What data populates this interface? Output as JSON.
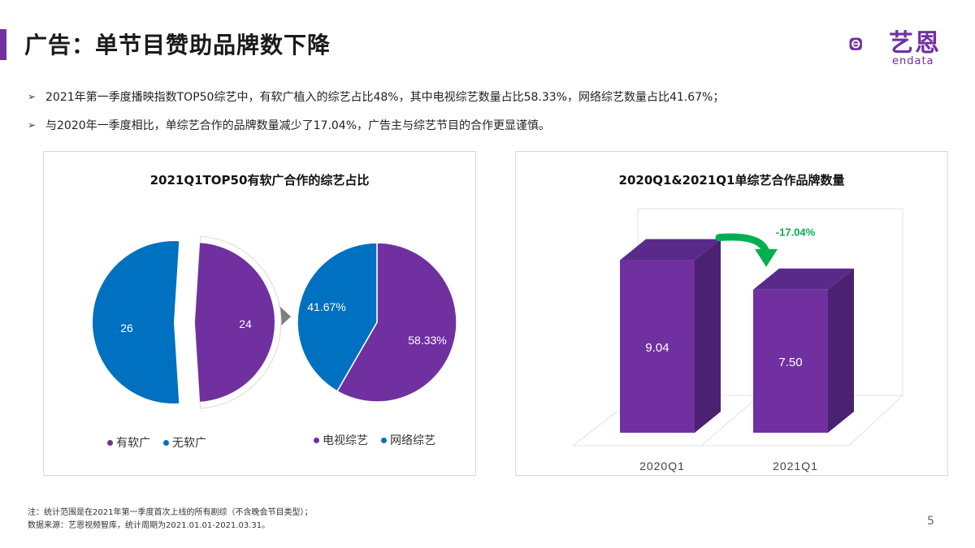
{
  "header": {
    "title": "广告：单节目赞助品牌数下降",
    "logo_name": "艺恩",
    "logo_sub": "endata"
  },
  "colors": {
    "accent": "#7030a0",
    "blue": "#0070c0",
    "green": "#00b050",
    "bar_front": "#7030a0",
    "bar_top": "#5a2a8a",
    "bar_side": "#4b2171"
  },
  "bullets": [
    "2021年第一季度播映指数TOP50综艺中，有软广植入的综艺占比48%，其中电视综艺数量占比58.33%，网络综艺数量占比41.67%；",
    "与2020年一季度相比，单综艺合作的品牌数量减少了17.04%，广告主与综艺节目的合作更显谨慎。"
  ],
  "bullet_mark": "➢",
  "chart_data": [
    {
      "type": "pie",
      "title": "2021Q1TOP50有软广合作的综艺占比",
      "labels": [
        "有软广",
        "无软广"
      ],
      "values": [
        24,
        26
      ],
      "data_labels": [
        "24",
        "26"
      ],
      "colors": [
        "#7030a0",
        "#0070c0"
      ],
      "legend_position": "bottom"
    },
    {
      "type": "pie",
      "title": "",
      "labels": [
        "电视综艺",
        "网络综艺"
      ],
      "values": [
        58.33,
        41.67
      ],
      "data_labels": [
        "58.33%",
        "41.67%"
      ],
      "colors": [
        "#7030a0",
        "#0070c0"
      ],
      "legend_position": "bottom"
    },
    {
      "type": "bar",
      "title": "2020Q1&2021Q1单综艺合作品牌数量",
      "categories": [
        "2020Q1",
        "2021Q1"
      ],
      "values": [
        9.04,
        7.5
      ],
      "data_labels": [
        "9.04",
        "7.50"
      ],
      "annotation": "-17.04%",
      "ylim": [
        0,
        10
      ],
      "grid": false,
      "style": "3d"
    }
  ],
  "footnote": {
    "line1": "注：统计范围是在2021年第一季度首次上线的所有剧综（不含晚会节目类型）；",
    "line2": "数据来源：艺恩视频智库，统计周期为2021.01.01-2021.03.31。"
  },
  "page_number": "5"
}
